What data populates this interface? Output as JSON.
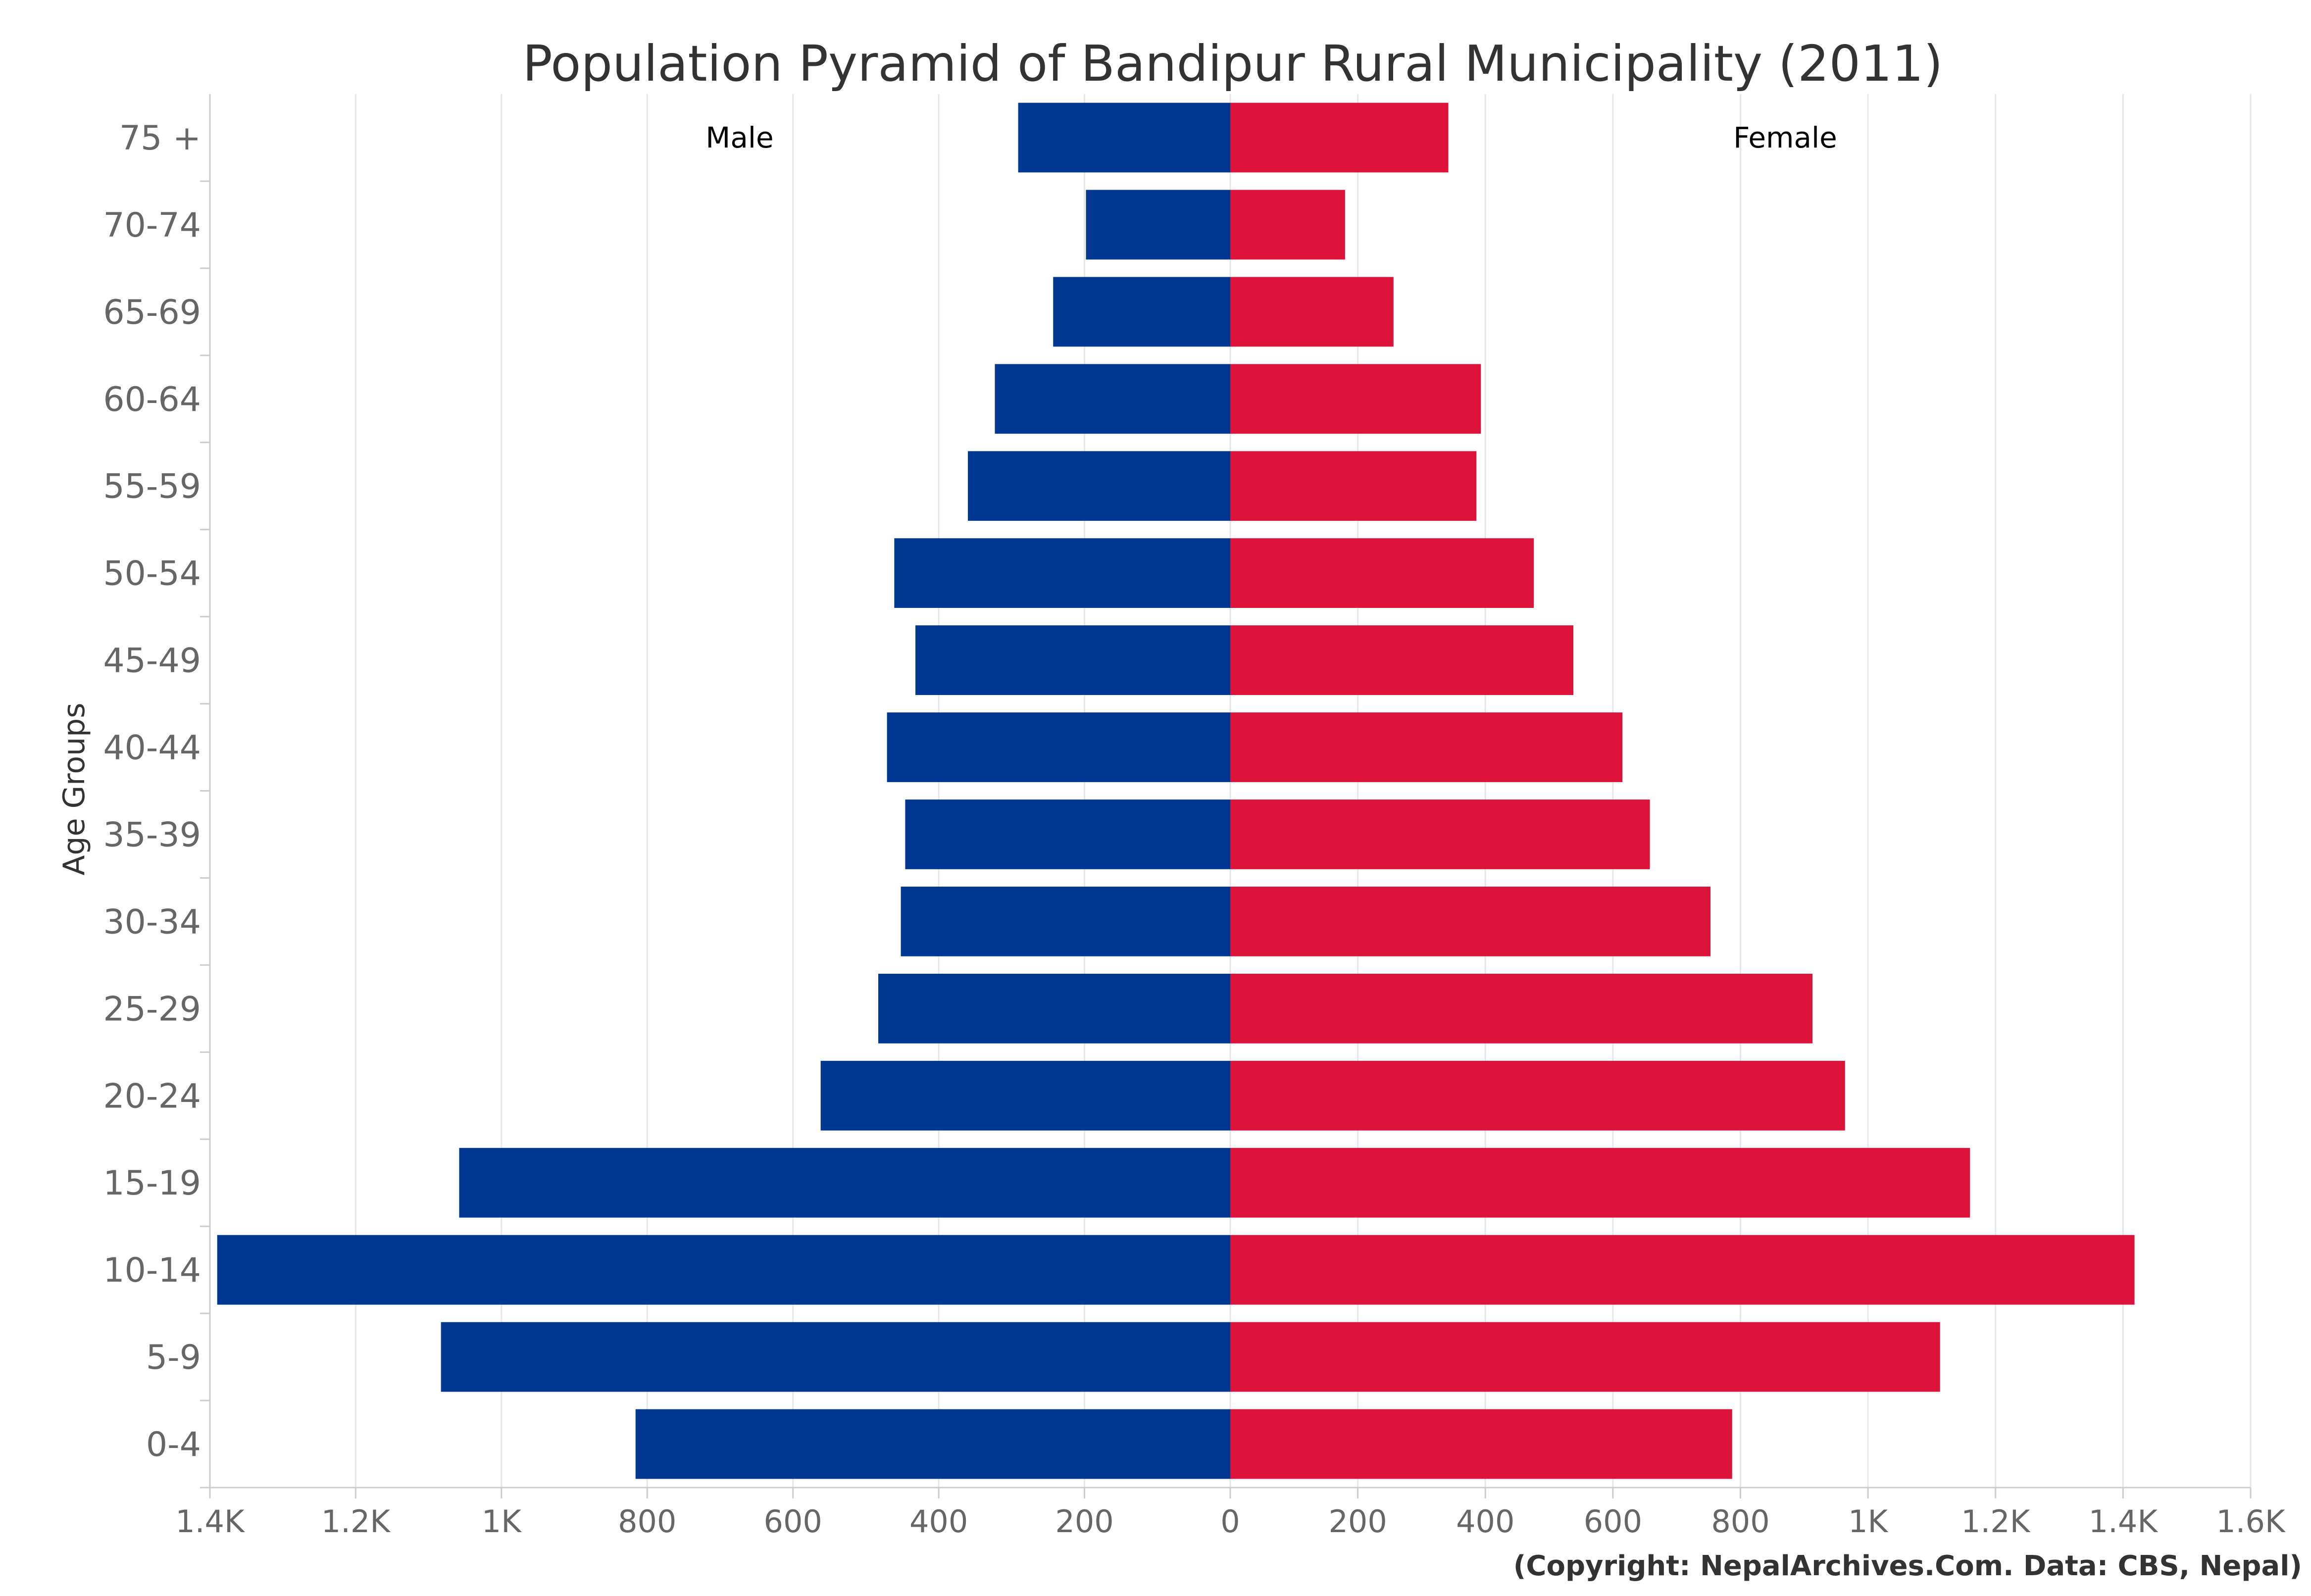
{
  "chart_data": {
    "type": "bar",
    "orientation": "horizontal",
    "title": "Population Pyramid of Bandipur Rural Municipality (2011)",
    "ylabel": "Age Groups",
    "credit": "(Copyright: NepalArchives.Com. Data: CBS, Nepal)",
    "categories": [
      "0-4",
      "5-9",
      "10-14",
      "15-19",
      "20-24",
      "25-29",
      "30-34",
      "35-39",
      "40-44",
      "45-49",
      "50-54",
      "55-59",
      "60-64",
      "65-69",
      "70-74",
      "75 +"
    ],
    "series": [
      {
        "name": "Male",
        "color": "#003893",
        "side": "left",
        "values": [
          816,
          1083,
          1390,
          1058,
          562,
          483,
          452,
          446,
          471,
          432,
          461,
          360,
          323,
          243,
          198,
          291
        ]
      },
      {
        "name": "Female",
        "color": "#DC143C",
        "side": "right",
        "values": [
          787,
          1113,
          1418,
          1160,
          964,
          913,
          753,
          658,
          615,
          538,
          476,
          386,
          393,
          256,
          180,
          342
        ]
      }
    ],
    "x_left": {
      "range": [
        0,
        1400
      ],
      "ticks": [
        1400,
        1200,
        1000,
        800,
        600,
        400,
        200,
        0
      ],
      "tick_labels": [
        "1.4K",
        "1.2K",
        "1K",
        "800",
        "600",
        "400",
        "200",
        "0"
      ]
    },
    "x_right": {
      "range": [
        0,
        1600
      ],
      "ticks": [
        200,
        400,
        600,
        800,
        1000,
        1200,
        1400,
        1600
      ],
      "tick_labels": [
        "200",
        "400",
        "600",
        "800",
        "1K",
        "1.2K",
        "1.4K",
        "1.6K"
      ]
    },
    "grid": true,
    "legend_placement": "top"
  }
}
